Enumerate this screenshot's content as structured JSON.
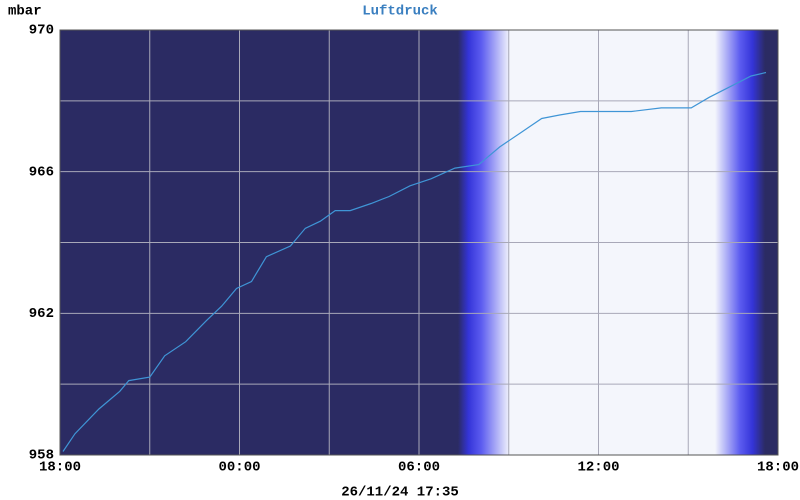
{
  "chart_data": {
    "type": "line",
    "title": "Luftdruck",
    "y_label": "mbar",
    "footer": "26/11/24 17:35",
    "x": [
      0.1,
      0.5,
      1.3,
      2.0,
      2.3,
      3.0,
      3.5,
      4.2,
      4.9,
      5.4,
      5.9,
      6.4,
      6.9,
      7.7,
      8.2,
      8.7,
      9.2,
      9.7,
      10.4,
      11.0,
      11.7,
      12.4,
      13.2,
      14.0,
      14.7,
      15.4,
      16.1,
      16.7,
      17.4,
      18.1,
      19.1,
      20.1,
      21.1,
      21.7,
      22.4,
      23.1,
      23.6
    ],
    "series": [
      {
        "name": "Luftdruck",
        "color": "#3f95d6",
        "values": [
          958.1,
          958.6,
          959.3,
          959.8,
          960.1,
          960.2,
          960.8,
          961.2,
          961.8,
          962.2,
          962.7,
          962.9,
          963.6,
          963.9,
          964.4,
          964.6,
          964.9,
          964.9,
          965.1,
          965.3,
          965.6,
          965.8,
          966.1,
          966.2,
          966.7,
          967.1,
          967.5,
          967.6,
          967.7,
          967.7,
          967.7,
          967.8,
          967.8,
          968.1,
          968.4,
          968.7,
          968.8
        ]
      }
    ],
    "xlim": [
      0,
      24
    ],
    "xticks": [
      {
        "value": 0,
        "label": "18:00"
      },
      {
        "value": 6,
        "label": "00:00"
      },
      {
        "value": 12,
        "label": "06:00"
      },
      {
        "value": 18,
        "label": "12:00"
      },
      {
        "value": 24,
        "label": "18:00"
      }
    ],
    "minor_xticks": [
      3,
      9,
      15,
      21
    ],
    "ylim": [
      958,
      970
    ],
    "yticks": [
      958,
      962,
      966,
      970
    ],
    "minor_yticks": [
      960,
      964,
      968
    ],
    "grid": true,
    "grid_color": "#a8a8b8"
  }
}
